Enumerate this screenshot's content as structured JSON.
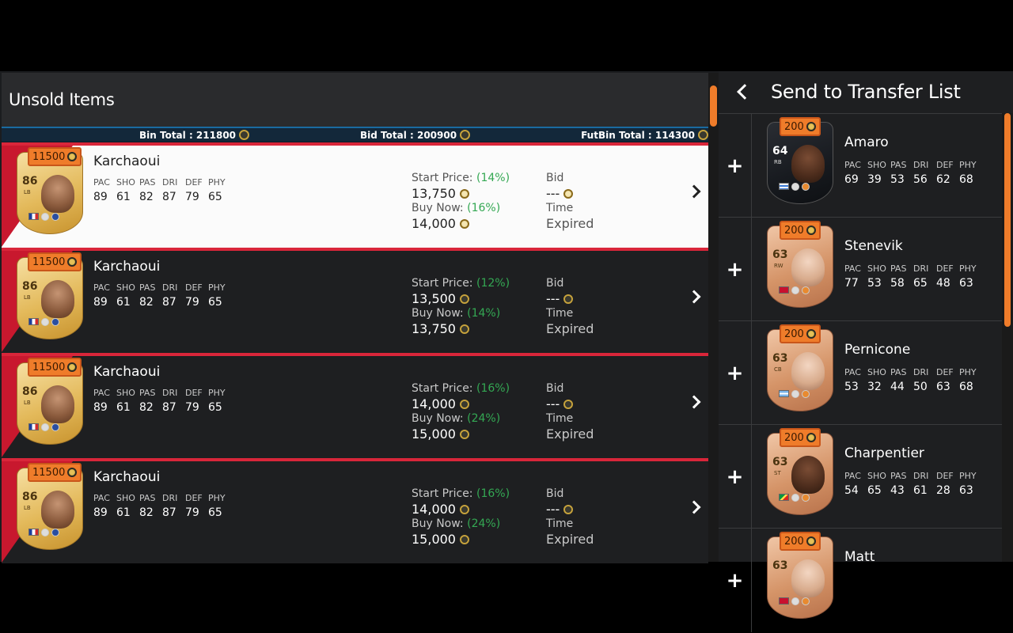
{
  "left_panel": {
    "title": "Unsold Items",
    "totals": {
      "bin": "Bin Total : 211800",
      "bid": "Bid Total : 200900",
      "futbin": "FutBin Total : 114300"
    },
    "items": [
      {
        "price_tag": "11500",
        "rating": "86",
        "position": "LB",
        "name": "Karchaoui",
        "stats": {
          "PAC": "89",
          "SHO": "61",
          "PAS": "82",
          "DRI": "87",
          "DEF": "79",
          "PHY": "65"
        },
        "start_label": "Start Price:",
        "start_pct": "(14%)",
        "start_price": "13,750",
        "buy_label": "Buy Now:",
        "buy_pct": "(16%)",
        "buy_price": "14,000",
        "bid_label": "Bid",
        "bid_value": "---",
        "time_label": "Time",
        "status": "Expired"
      },
      {
        "price_tag": "11500",
        "rating": "86",
        "position": "LB",
        "name": "Karchaoui",
        "stats": {
          "PAC": "89",
          "SHO": "61",
          "PAS": "82",
          "DRI": "87",
          "DEF": "79",
          "PHY": "65"
        },
        "start_label": "Start Price:",
        "start_pct": "(12%)",
        "start_price": "13,500",
        "buy_label": "Buy Now:",
        "buy_pct": "(14%)",
        "buy_price": "13,750",
        "bid_label": "Bid",
        "bid_value": "---",
        "time_label": "Time",
        "status": "Expired"
      },
      {
        "price_tag": "11500",
        "rating": "86",
        "position": "LB",
        "name": "Karchaoui",
        "stats": {
          "PAC": "89",
          "SHO": "61",
          "PAS": "82",
          "DRI": "87",
          "DEF": "79",
          "PHY": "65"
        },
        "start_label": "Start Price:",
        "start_pct": "(16%)",
        "start_price": "14,000",
        "buy_label": "Buy Now:",
        "buy_pct": "(24%)",
        "buy_price": "15,000",
        "bid_label": "Bid",
        "bid_value": "---",
        "time_label": "Time",
        "status": "Expired"
      },
      {
        "price_tag": "11500",
        "rating": "86",
        "position": "LB",
        "name": "Karchaoui",
        "stats": {
          "PAC": "89",
          "SHO": "61",
          "PAS": "82",
          "DRI": "87",
          "DEF": "79",
          "PHY": "65"
        },
        "start_label": "Start Price:",
        "start_pct": "(16%)",
        "start_price": "14,000",
        "buy_label": "Buy Now:",
        "buy_pct": "(24%)",
        "buy_price": "15,000",
        "bid_label": "Bid",
        "bid_value": "---",
        "time_label": "Time",
        "status": "Expired"
      }
    ]
  },
  "right_panel": {
    "title": "Send to Transfer List",
    "items": [
      {
        "price_tag": "200",
        "rating": "64",
        "position": "RB",
        "name": "Amaro",
        "stats": {
          "PAC": "69",
          "SHO": "39",
          "PAS": "53",
          "DRI": "56",
          "DEF": "62",
          "PHY": "68"
        }
      },
      {
        "price_tag": "200",
        "rating": "63",
        "position": "RW",
        "name": "Stenevik",
        "stats": {
          "PAC": "77",
          "SHO": "53",
          "PAS": "58",
          "DRI": "65",
          "DEF": "48",
          "PHY": "63"
        }
      },
      {
        "price_tag": "200",
        "rating": "63",
        "position": "CB",
        "name": "Pernicone",
        "stats": {
          "PAC": "53",
          "SHO": "32",
          "PAS": "44",
          "DRI": "50",
          "DEF": "63",
          "PHY": "68"
        }
      },
      {
        "price_tag": "200",
        "rating": "63",
        "position": "ST",
        "name": "Charpentier",
        "stats": {
          "PAC": "54",
          "SHO": "65",
          "PAS": "43",
          "DRI": "61",
          "DEF": "28",
          "PHY": "63"
        }
      },
      {
        "price_tag": "200",
        "rating": "63",
        "position": "",
        "name": "Matt",
        "stats": {}
      }
    ],
    "plus_symbol": "+"
  },
  "stat_headers": [
    "PAC",
    "SHO",
    "PAS",
    "DRI",
    "DEF",
    "PHY"
  ],
  "colors": {
    "accent": "#ef7c2a",
    "red_stripe": "#d9263a",
    "positive_pct": "#34a853"
  },
  "icons": {
    "coin": "coin-icon",
    "chevron": "chevron-right-icon",
    "back": "chevron-left-icon",
    "add": "plus-icon"
  }
}
